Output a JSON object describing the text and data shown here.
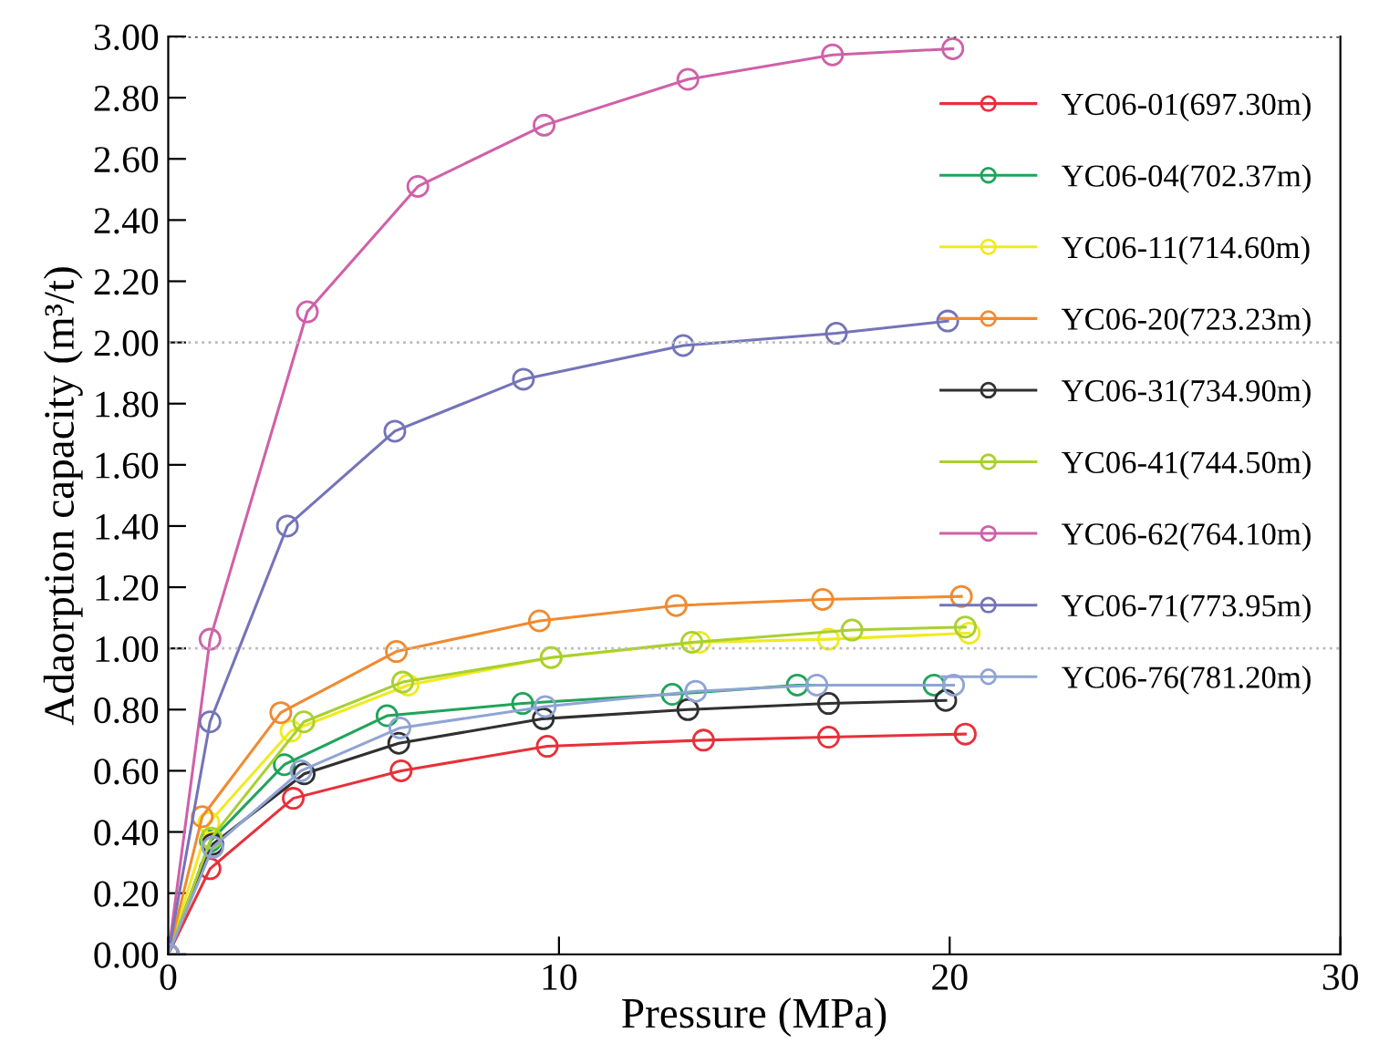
{
  "chart_data": {
    "type": "line",
    "xlabel": "Pressure (MPa)",
    "ylabel": "Adaorption capacity (m³/t)",
    "xlim": [
      0,
      30
    ],
    "xticks": [
      0,
      10,
      20,
      30
    ],
    "ylim": [
      0,
      3
    ],
    "yticks": [
      {
        "value": 0,
        "label": "0.00"
      },
      {
        "value": 0.2,
        "label": "0.20"
      },
      {
        "value": 0.4,
        "label": "0.40"
      },
      {
        "value": 0.6,
        "label": "0.60"
      },
      {
        "value": 0.8,
        "label": "0.80"
      },
      {
        "value": 1.0,
        "label": "1.00"
      },
      {
        "value": 1.2,
        "label": "1.20"
      },
      {
        "value": 1.4,
        "label": "1.40"
      },
      {
        "value": 1.6,
        "label": "1.60"
      },
      {
        "value": 1.8,
        "label": "1.80"
      },
      {
        "value": 2.0,
        "label": "2.00"
      },
      {
        "value": 2.2,
        "label": "2.20"
      },
      {
        "value": 2.4,
        "label": "2.40"
      },
      {
        "value": 2.6,
        "label": "2.60"
      },
      {
        "value": 2.8,
        "label": "2.80"
      },
      {
        "value": 3.0,
        "label": "3.00"
      }
    ],
    "marker": "circle",
    "line_style": "solid",
    "grid": false,
    "legend": "top right",
    "ref_lines": [
      {
        "axis": "y",
        "value": 1.0,
        "color": "#bbbbbb",
        "line_style": "dotted"
      },
      {
        "axis": "y",
        "value": 2.0,
        "color": "#bbbbbb",
        "line_style": "dotted"
      },
      {
        "axis": "y",
        "value": 3.0,
        "color": "#333333",
        "line_style": "dotted"
      }
    ],
    "series": [
      {
        "name": "YC06-01(697.30m)",
        "color": "#e8303a",
        "x": [
          0,
          1.07,
          3.2,
          5.96,
          9.7,
          13.7,
          16.9,
          20.4
        ],
        "values": [
          0,
          0.28,
          0.51,
          0.6,
          0.68,
          0.7,
          0.71,
          0.72
        ]
      },
      {
        "name": "YC06-04(702.37m)",
        "color": "#1fa45a",
        "x": [
          0,
          1.08,
          2.97,
          5.6,
          9.07,
          12.9,
          16.1,
          19.6
        ],
        "values": [
          0,
          0.37,
          0.62,
          0.78,
          0.82,
          0.85,
          0.88,
          0.88
        ]
      },
      {
        "name": "YC06-11(714.60m)",
        "color": "#f0ea20",
        "x": [
          0,
          1.04,
          3.14,
          6.14,
          9.8,
          13.6,
          16.9,
          20.5
        ],
        "values": [
          0,
          0.43,
          0.73,
          0.88,
          0.97,
          1.02,
          1.03,
          1.05
        ]
      },
      {
        "name": "YC06-20(723.23m)",
        "color": "#f08a30",
        "x": [
          0,
          0.87,
          2.88,
          5.84,
          9.5,
          13.0,
          16.75,
          20.3
        ],
        "values": [
          0,
          0.45,
          0.79,
          0.99,
          1.09,
          1.14,
          1.16,
          1.17
        ]
      },
      {
        "name": "YC06-31(734.90m)",
        "color": "#303030",
        "x": [
          0,
          1.14,
          3.48,
          5.9,
          9.6,
          13.3,
          16.9,
          19.9
        ],
        "values": [
          0,
          0.36,
          0.59,
          0.69,
          0.77,
          0.8,
          0.82,
          0.83
        ]
      },
      {
        "name": "YC06-41(744.50m)",
        "color": "#a8d030",
        "x": [
          0,
          1.1,
          3.47,
          6.0,
          9.8,
          13.4,
          17.5,
          20.4
        ],
        "values": [
          0,
          0.38,
          0.76,
          0.89,
          0.97,
          1.02,
          1.06,
          1.07
        ]
      },
      {
        "name": "YC06-62(764.10m)",
        "color": "#d060a8",
        "x": [
          0,
          1.07,
          3.56,
          6.39,
          9.62,
          13.3,
          17.0,
          20.08
        ],
        "values": [
          0,
          1.03,
          2.1,
          2.51,
          2.71,
          2.86,
          2.94,
          2.96
        ]
      },
      {
        "name": "YC06-71(773.95m)",
        "color": "#7474b8",
        "x": [
          0,
          1.07,
          3.05,
          5.8,
          9.09,
          13.18,
          17.1,
          19.95
        ],
        "values": [
          0,
          0.76,
          1.4,
          1.71,
          1.88,
          1.99,
          2.03,
          2.07
        ]
      },
      {
        "name": "YC06-76(781.20m)",
        "color": "#90a4d4",
        "x": [
          0,
          1.14,
          3.4,
          5.93,
          9.65,
          13.5,
          16.6,
          20.1
        ],
        "values": [
          0,
          0.35,
          0.6,
          0.74,
          0.81,
          0.86,
          0.88,
          0.88
        ]
      }
    ]
  }
}
